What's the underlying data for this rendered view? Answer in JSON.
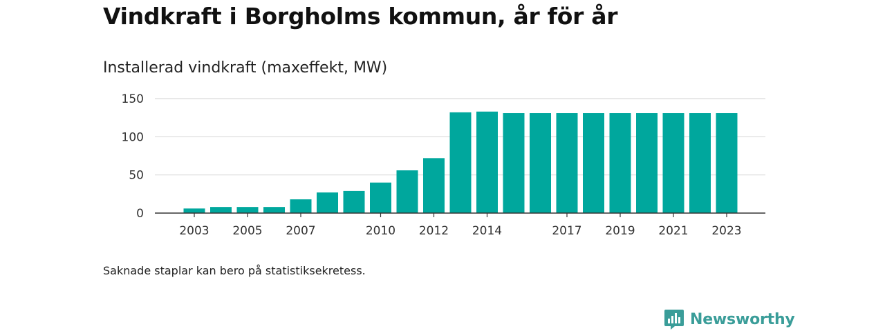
{
  "title": "Vindkraft i Borgholms kommun, år för år",
  "subtitle": "Installerad vindkraft (maxeffekt, MW)",
  "note": "Saknade staplar kan bero på statistiksekretess.",
  "brand": {
    "name": "Newsworthy",
    "icon": "newsworthy-logo-icon",
    "color": "#3a9d99"
  },
  "chart_data": {
    "type": "bar",
    "color": "#00a79d",
    "categories": [
      "2003",
      "2004",
      "2005",
      "2006",
      "2007",
      "2008",
      "2009",
      "2010",
      "2011",
      "2012",
      "2013",
      "2014",
      "2015",
      "2016",
      "2017",
      "2018",
      "2019",
      "2020",
      "2021",
      "2022",
      "2023"
    ],
    "values": [
      6,
      8,
      8,
      8,
      18,
      27,
      29,
      40,
      56,
      72,
      132,
      133,
      131,
      131,
      131,
      131,
      131,
      131,
      131,
      131,
      131
    ],
    "x_tick_labels": [
      "2003",
      "2005",
      "2007",
      "2010",
      "2012",
      "2014",
      "2017",
      "2019",
      "2021",
      "2023"
    ],
    "y_ticks": [
      0,
      50,
      100,
      150
    ],
    "ylim": [
      0,
      150
    ],
    "grid": true,
    "legend": "none"
  }
}
